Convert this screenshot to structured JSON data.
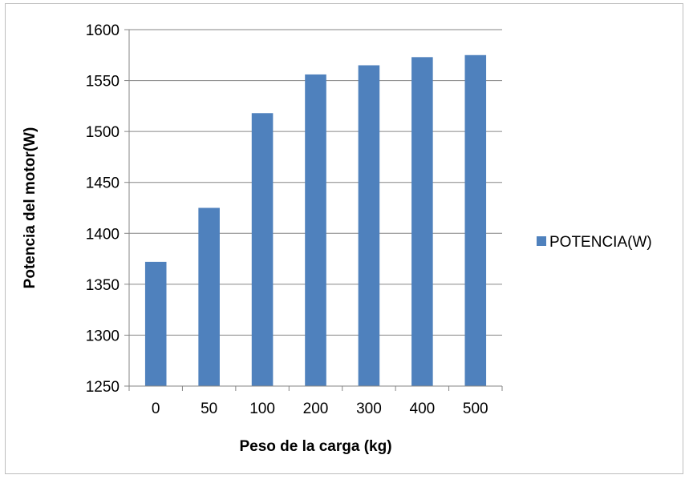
{
  "chart_data": {
    "type": "bar",
    "title": "",
    "xlabel": "Peso de la carga (kg)",
    "ylabel": "Potencia del motor(W)",
    "categories": [
      "0",
      "50",
      "100",
      "200",
      "300",
      "400",
      "500"
    ],
    "series": [
      {
        "name": "POTENCIA(W)",
        "values": [
          1372,
          1425,
          1518,
          1556,
          1565,
          1573,
          1575
        ],
        "color": "#4F81BD"
      }
    ],
    "ylim": [
      1250,
      1600
    ],
    "yticks": [
      "1250",
      "1300",
      "1350",
      "1400",
      "1450",
      "1500",
      "1550",
      "1600"
    ],
    "grid": true,
    "legend": "right"
  }
}
